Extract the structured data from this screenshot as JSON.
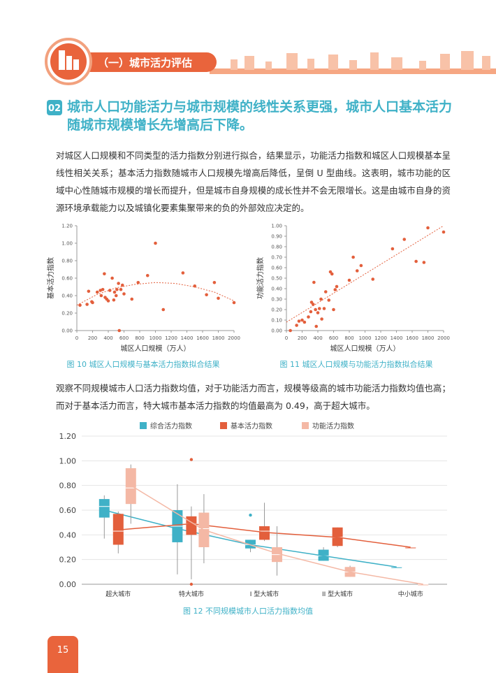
{
  "header": {
    "section": "（一）城市活力评估"
  },
  "heading": {
    "number": "02",
    "title": "城市人口功能活力与城市规模的线性关系更强，城市人口基本活力随城市规模增长先增高后下降。"
  },
  "paragraphs": [
    "对城区人口规模和不同类型的活力指数分别进行拟合，结果显示，功能活力指数和城区人口规模基本呈线性相关关系；基本活力指数随城市人口规模先增高后降低，呈倒 U 型曲线。这表明，城市功能的区域中心性随城市规模的增长而提升，但是城市自身规模的成长性并不会无限增长。这是由城市自身的资源环境承载能力以及城镇化要素集聚带来的负的外部效应决定的。",
    "观察不同规模城市人口活力指数均值，对于功能活力而言，规模等级高的城市功能活力指数均值也高；而对于基本活力而言，特大城市基本活力指数的均值最高为 0.49，高于超大城市。"
  ],
  "chart_data": [
    {
      "type": "scatter",
      "caption": "图 10 城区人口规模与基本活力指数拟合结果",
      "x_label": "城区人口规模（万人）",
      "y_label": "基本活力指数",
      "color": "#e35f3c",
      "xlim": [
        0,
        2000
      ],
      "xticks": [
        0,
        200,
        400,
        600,
        800,
        1000,
        1200,
        1400,
        1600,
        1800,
        2000
      ],
      "ylim": [
        0,
        1.2
      ],
      "yticks": [
        {
          "value": 0,
          "label": "0.00"
        },
        {
          "value": 0.2,
          "label": "0.20"
        },
        {
          "value": 0.4,
          "label": "0.40"
        },
        {
          "value": 0.6,
          "label": "0.60"
        },
        {
          "value": 0.8,
          "label": "0.80"
        },
        {
          "value": 1,
          "label": "1.00"
        },
        {
          "value": 1.2,
          "label": "1.20"
        }
      ],
      "x": [
        40,
        130,
        150,
        190,
        200,
        260,
        300,
        310,
        330,
        350,
        360,
        380,
        400,
        420,
        450,
        470,
        480,
        500,
        510,
        530,
        540,
        560,
        580,
        600,
        700,
        780,
        900,
        1000,
        1100,
        1350,
        1500,
        1650,
        1750,
        1800,
        2000
      ],
      "values": [
        0.29,
        0.3,
        0.45,
        0.33,
        0.32,
        0.44,
        0.46,
        0.4,
        0.47,
        0.65,
        0.38,
        0.36,
        0.34,
        0.46,
        0.6,
        0.35,
        0.44,
        0.4,
        0.47,
        0.54,
        0,
        0.47,
        0.52,
        0.42,
        0.36,
        0.55,
        0.63,
        1,
        0.24,
        0.66,
        0.51,
        0.41,
        0.55,
        0.37,
        0.32
      ],
      "trendline": {
        "x": [
          0,
          250,
          500,
          750,
          1000,
          1250,
          1500,
          1750,
          2000
        ],
        "values": [
          0.29,
          0.41,
          0.49,
          0.53,
          0.55,
          0.54,
          0.5,
          0.44,
          0.34
        ]
      }
    },
    {
      "type": "scatter",
      "caption": "图 11 城区人口规模与功能活力指数拟合结果",
      "x_label": "城区人口规模（万人）",
      "y_label": "功能活力指数",
      "color": "#e35f3c",
      "xlim": [
        0,
        2000
      ],
      "xticks": [
        0,
        200,
        400,
        600,
        800,
        1000,
        1200,
        1400,
        1600,
        1800,
        2000
      ],
      "ylim": [
        0,
        1
      ],
      "yticks": [
        {
          "value": 0,
          "label": "0.00"
        },
        {
          "value": 0.1,
          "label": "0.10"
        },
        {
          "value": 0.2,
          "label": "0.20"
        },
        {
          "value": 0.3,
          "label": "0.30"
        },
        {
          "value": 0.4,
          "label": "0.40"
        },
        {
          "value": 0.5,
          "label": "0.50"
        },
        {
          "value": 0.6,
          "label": "0.60"
        },
        {
          "value": 0.7,
          "label": "0.70"
        },
        {
          "value": 0.8,
          "label": "0.80"
        },
        {
          "value": 0.9,
          "label": "0.90"
        },
        {
          "value": 1,
          "label": "1.00"
        }
      ],
      "x": [
        50,
        130,
        160,
        200,
        230,
        280,
        310,
        320,
        340,
        350,
        370,
        380,
        400,
        420,
        440,
        450,
        480,
        500,
        540,
        560,
        580,
        600,
        620,
        640,
        800,
        850,
        900,
        950,
        1100,
        1350,
        1500,
        1650,
        1750,
        1800,
        2000
      ],
      "values": [
        0,
        0.05,
        0.09,
        0.1,
        0.08,
        0.13,
        0.18,
        0.27,
        0.25,
        0.46,
        0.2,
        0.04,
        0.17,
        0.21,
        0.3,
        0.11,
        0.21,
        0.37,
        0.29,
        0.56,
        0.54,
        0.2,
        0.39,
        0.42,
        0.48,
        0.7,
        0.57,
        0.62,
        0.49,
        0.78,
        0.87,
        0.66,
        0.65,
        0.98,
        0.94
      ],
      "trendline": {
        "x": [
          0,
          2000
        ],
        "values": [
          0.08,
          1
        ]
      }
    },
    {
      "type": "box",
      "caption": "图 12 不同规模城市人口活力指数均值",
      "categories": [
        "超大城市",
        "特大城市",
        "I 型大城市",
        "II 型大城市",
        "中小城市"
      ],
      "ylim": [
        0,
        1.2
      ],
      "yticks": [
        {
          "value": 0,
          "label": "0.00"
        },
        {
          "value": 0.2,
          "label": "0.20"
        },
        {
          "value": 0.4,
          "label": "0.40"
        },
        {
          "value": 0.6,
          "label": "0.60"
        },
        {
          "value": 0.8,
          "label": "0.80"
        },
        {
          "value": 1,
          "label": "1.00"
        },
        {
          "value": 1.2,
          "label": "1.20"
        }
      ],
      "series": [
        {
          "name": "综合活力指数",
          "color": "#3fb1c7",
          "min": [
            0.37,
            0.08,
            0.26,
            0.19,
            0.14
          ],
          "q1": [
            0.54,
            0.34,
            0.29,
            0.19,
            0.14
          ],
          "median": [
            0.63,
            0.47,
            0.32,
            0.23,
            0.14
          ],
          "q3": [
            0.69,
            0.6,
            0.36,
            0.28,
            0.14
          ],
          "max": [
            0.72,
            0.81,
            0.36,
            0.3,
            0.14
          ],
          "mean": [
            0.6,
            0.45,
            0.32,
            0.23,
            0.14
          ],
          "outliers": [
            [],
            [],
            [
              0.56
            ],
            [],
            []
          ]
        },
        {
          "name": "基本活力指数",
          "color": "#e35f3c",
          "min": [
            0.25,
            0.04,
            0.35,
            0.3,
            0.3
          ],
          "q1": [
            0.32,
            0.4,
            0.36,
            0.31,
            0.3
          ],
          "median": [
            0.43,
            0.49,
            0.43,
            0.38,
            0.3
          ],
          "q3": [
            0.57,
            0.55,
            0.47,
            0.46,
            0.3
          ],
          "max": [
            0.59,
            0.63,
            0.66,
            0.46,
            0.3
          ],
          "mean": [
            0.44,
            0.49,
            0.42,
            0.38,
            0.3
          ],
          "outliers": [
            [],
            [
              1.01,
              0
            ],
            [],
            [],
            []
          ]
        },
        {
          "name": "功能活力指数",
          "color": "#f4b8a5",
          "min": [
            0.49,
            0.17,
            0.07,
            0.06,
            0
          ],
          "q1": [
            0.65,
            0.3,
            0.18,
            0.06,
            0
          ],
          "median": [
            0.78,
            0.45,
            0.24,
            0.1,
            0
          ],
          "q3": [
            0.94,
            0.58,
            0.3,
            0.14,
            0
          ],
          "max": [
            0.97,
            0.73,
            0.47,
            0.15,
            0
          ],
          "mean": [
            0.8,
            0.44,
            0.25,
            0.1,
            0
          ],
          "outliers": [
            [],
            [],
            [],
            [],
            []
          ]
        }
      ]
    }
  ],
  "page_number": "15"
}
